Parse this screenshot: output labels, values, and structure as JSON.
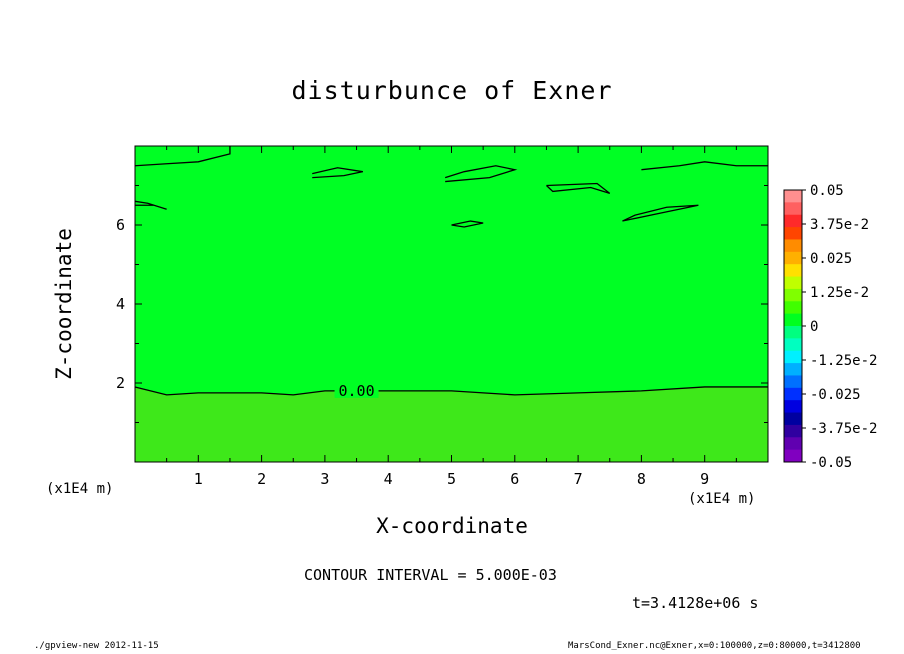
{
  "header": {
    "footer_left": "./gpview-new  2012-11-15",
    "footer_right": "MarsCond_Exner.nc@Exner,x=0:100000,z=0:80000,t=3412800"
  },
  "chart_data": {
    "type": "contour",
    "title": "disturbunce of Exner",
    "xlabel": "X-coordinate",
    "ylabel": "Z-coordinate",
    "x_unit_label": "(x1E4 m)",
    "y_unit_label": "(x1E4 m)",
    "xlim": [
      0,
      10
    ],
    "ylim": [
      0,
      8
    ],
    "x_ticks": [
      1,
      2,
      3,
      4,
      5,
      6,
      7,
      8,
      9
    ],
    "y_ticks": [
      2,
      4,
      6
    ],
    "contour_interval_text": "CONTOUR INTERVAL = 5.000E-03",
    "time_text": "t=3.4128e+06 s",
    "contour_label": "0.00",
    "colorbar": {
      "labels": [
        "0.05",
        "3.75e-2",
        "0.025",
        "1.25e-2",
        "0",
        "-1.25e-2",
        "-0.025",
        "-3.75e-2",
        "-0.05"
      ],
      "colors": [
        "#ff8f8f",
        "#ff6060",
        "#ff2a2a",
        "#ff4500",
        "#ff8c00",
        "#ffb000",
        "#ffe000",
        "#c0ff00",
        "#80ff00",
        "#40ff00",
        "#00ff20",
        "#00ff80",
        "#00ffc0",
        "#00f0ff",
        "#00b0ff",
        "#0070ff",
        "#0030ff",
        "#0000e0",
        "#0000a0",
        "#3000a0",
        "#6000b0",
        "#8000c0"
      ]
    },
    "fill_colors": {
      "upper": "#00ff24",
      "lower": "#3ee81a"
    },
    "zero_contour": [
      [
        0,
        1.9
      ],
      [
        0.5,
        1.7
      ],
      [
        1.0,
        1.75
      ],
      [
        2.0,
        1.75
      ],
      [
        2.5,
        1.7
      ],
      [
        3.0,
        1.8
      ],
      [
        4.0,
        1.8
      ],
      [
        5.0,
        1.8
      ],
      [
        6.0,
        1.7
      ],
      [
        7.0,
        1.75
      ],
      [
        8.0,
        1.8
      ],
      [
        9.0,
        1.9
      ],
      [
        10.0,
        1.9
      ]
    ],
    "upper_contours": [
      [
        [
          0,
          7.5
        ],
        [
          0.5,
          7.55
        ],
        [
          1.0,
          7.6
        ],
        [
          1.5,
          7.8
        ],
        [
          1.5,
          8.0
        ]
      ],
      [
        [
          0,
          6.5
        ],
        [
          0.3,
          6.5
        ],
        [
          0.5,
          6.4
        ],
        [
          0.2,
          6.55
        ],
        [
          0,
          6.6
        ]
      ],
      [
        [
          2.8,
          7.2
        ],
        [
          3.3,
          7.25
        ],
        [
          3.6,
          7.35
        ],
        [
          3.2,
          7.45
        ],
        [
          2.8,
          7.3
        ]
      ],
      [
        [
          4.9,
          7.1
        ],
        [
          5.6,
          7.2
        ],
        [
          6.0,
          7.4
        ],
        [
          5.7,
          7.5
        ],
        [
          5.2,
          7.35
        ],
        [
          4.9,
          7.2
        ]
      ],
      [
        [
          6.5,
          7.0
        ],
        [
          7.3,
          7.05
        ],
        [
          7.5,
          6.8
        ],
        [
          7.2,
          6.95
        ],
        [
          6.6,
          6.85
        ],
        [
          6.5,
          7.0
        ]
      ],
      [
        [
          7.7,
          6.1
        ],
        [
          8.3,
          6.3
        ],
        [
          8.9,
          6.5
        ],
        [
          8.4,
          6.45
        ],
        [
          7.9,
          6.25
        ],
        [
          7.7,
          6.1
        ]
      ],
      [
        [
          5.0,
          6.0
        ],
        [
          5.3,
          6.1
        ],
        [
          5.5,
          6.05
        ],
        [
          5.2,
          5.95
        ],
        [
          5.0,
          6.0
        ]
      ],
      [
        [
          8.0,
          7.4
        ],
        [
          8.6,
          7.5
        ],
        [
          9.0,
          7.6
        ],
        [
          9.5,
          7.5
        ],
        [
          10.0,
          7.5
        ]
      ]
    ]
  }
}
